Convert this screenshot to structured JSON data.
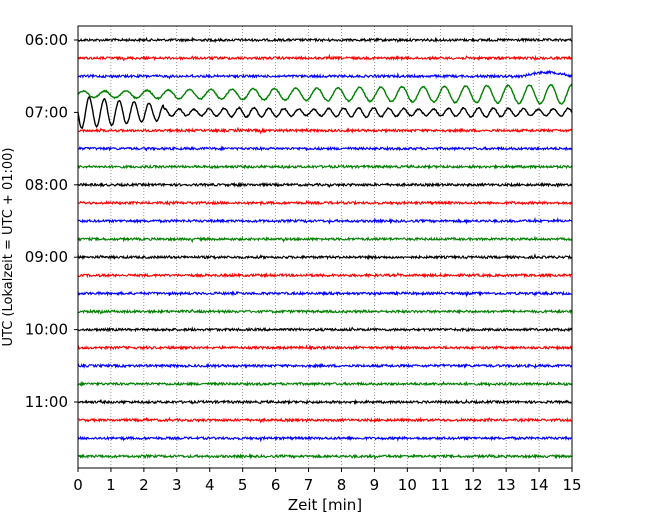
{
  "chart_data": {
    "type": "line",
    "title": "",
    "xlabel": "Zeit  [min]",
    "ylabel": "UTC (Lokalzeit = UTC + 01:00)",
    "xlim": [
      0,
      15
    ],
    "x_ticks": [
      0,
      1,
      2,
      3,
      4,
      5,
      6,
      7,
      8,
      9,
      10,
      11,
      12,
      13,
      14,
      15
    ],
    "y_tick_labels": [
      "06:00",
      "07:00",
      "08:00",
      "09:00",
      "10:00",
      "11:00"
    ],
    "grid": {
      "x": true,
      "y": false,
      "style": "dotted"
    },
    "trace_start": "06:00",
    "trace_interval_min": 15,
    "trace_count": 24,
    "trace_colors": [
      "#000000",
      "#ff0000",
      "#0000ff",
      "#008000"
    ],
    "annotations": [
      {
        "trace_start_time": "06:30",
        "color": "#0000ff",
        "description": "long-period drift near end of trace",
        "x_range": [
          13.5,
          15
        ]
      },
      {
        "trace_start_time": "06:45",
        "color": "#008000",
        "description": "large regular oscillation",
        "x_range": [
          0,
          15
        ]
      },
      {
        "trace_start_time": "07:00",
        "color": "#000000",
        "description": "large decaying oscillation",
        "x_range": [
          0,
          3
        ]
      },
      {
        "trace_start_time": "07:00",
        "color": "#000000",
        "description": "moderate oscillation",
        "x_range": [
          3,
          15
        ]
      }
    ]
  }
}
